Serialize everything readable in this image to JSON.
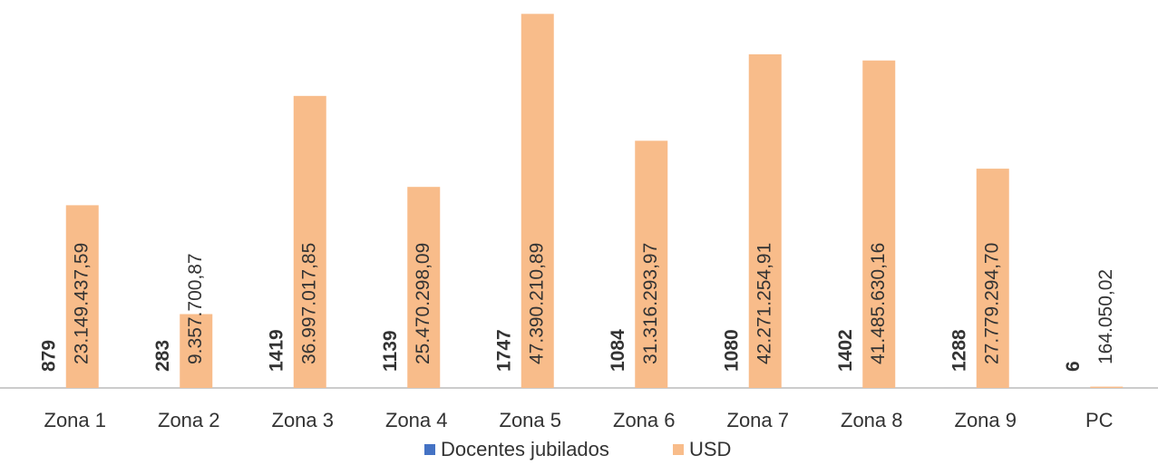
{
  "chart_data": {
    "type": "bar",
    "categories": [
      "Zona 1",
      "Zona 2",
      "Zona 3",
      "Zona 4",
      "Zona 5",
      "Zona 6",
      "Zona 7",
      "Zona 8",
      "Zona 9",
      "PC"
    ],
    "series": [
      {
        "name": "Docentes jubilados",
        "color": "#4472c4",
        "values": [
          879,
          283,
          1419,
          1139,
          1747,
          1084,
          1080,
          1402,
          1288,
          6
        ]
      },
      {
        "name": "USD",
        "color": "#f8bc8a",
        "values": [
          23149437.59,
          9357700.87,
          36997017.85,
          25470298.09,
          47390210.89,
          31316293.97,
          42271254.91,
          41485630.16,
          27779294.7,
          164050.02
        ],
        "value_labels": [
          "23.149.437,59",
          "9.357.700,87",
          "36.997.017,85",
          "25.470.298,09",
          "47.390.210,89",
          "31.316.293,97",
          "42.271.254,91",
          "41.485.630,16",
          "27.779.294,70",
          "164.050,02"
        ]
      }
    ],
    "ylim": [
      0,
      48000000
    ],
    "legend": "bottom"
  }
}
